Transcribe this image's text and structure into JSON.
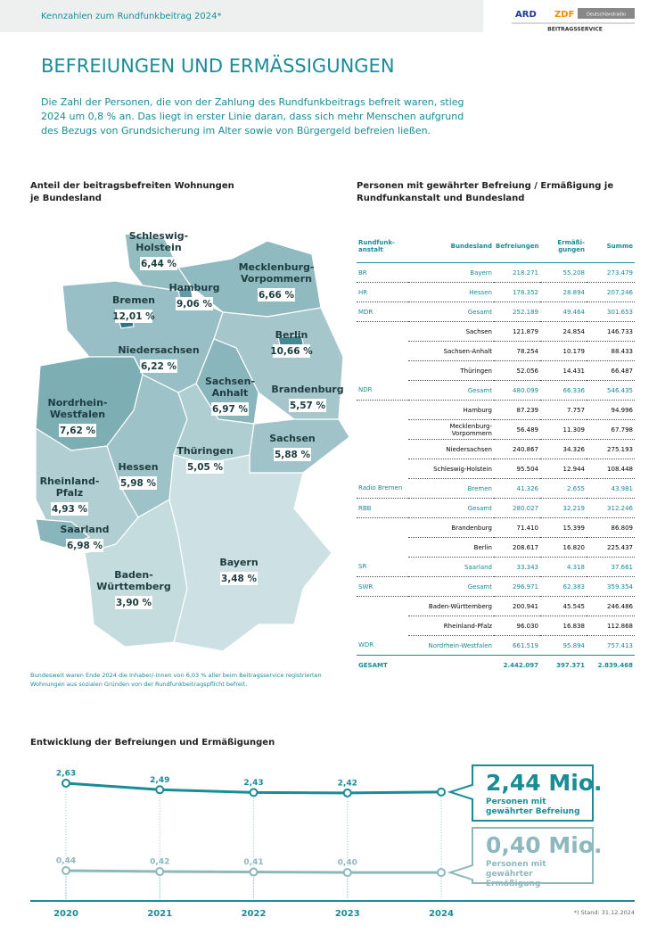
{
  "header": {
    "kicker": "Kennzahlen zum Rundfunkbeitrag 2024*",
    "logos": [
      "ARD",
      "ZDF",
      "Deutschlandradio",
      "BEITRAGSSERVICE"
    ]
  },
  "title": "BEFREIUNGEN UND ERMÄSSIGUNGEN",
  "intro": "Die Zahl der Personen, die von der Zahlung des Rundfunkbeitrags befreit waren, stieg 2024 um 0,8 % an. Das liegt in erster Linie daran, dass sich mehr Menschen aufgrund des Bezugs von Grundsicherung im Alter sowie von Bürgergeld befreien ließen.",
  "map": {
    "title": "Anteil der beitragsbefreiten Wohnungen je Bundesland",
    "regions": [
      {
        "name": [
          "Schleswig-",
          "Holstein"
        ],
        "value": 6.44,
        "label": "6,44 %"
      },
      {
        "name": [
          "Mecklenburg-",
          "Vorpommern"
        ],
        "value": 6.66,
        "label": "6,66 %"
      },
      {
        "name": [
          "Niedersachsen"
        ],
        "value": 6.22,
        "label": "6,22 %"
      },
      {
        "name": [
          "Brandenburg"
        ],
        "value": 5.57,
        "label": "5,57 %"
      },
      {
        "name": [
          "Sachsen-",
          "Anhalt"
        ],
        "value": 6.97,
        "label": "6,97 %"
      },
      {
        "name": [
          "Nordrhein-",
          "Westfalen"
        ],
        "value": 7.62,
        "label": "7,62 %"
      },
      {
        "name": [
          "Hessen"
        ],
        "value": 5.98,
        "label": "5,98 %"
      },
      {
        "name": [
          "Thüringen"
        ],
        "value": 5.05,
        "label": "5,05 %"
      },
      {
        "name": [
          "Sachsen"
        ],
        "value": 5.88,
        "label": "5,88 %"
      },
      {
        "name": [
          "Rheinland-",
          "Pfalz"
        ],
        "value": 4.93,
        "label": "4,93 %"
      },
      {
        "name": [
          "Saarland"
        ],
        "value": 6.98,
        "label": "6,98 %"
      },
      {
        "name": [
          "Baden-",
          "Württemberg"
        ],
        "value": 3.9,
        "label": "3,90 %"
      },
      {
        "name": [
          "Bayern"
        ],
        "value": 3.48,
        "label": "3,48 %"
      },
      {
        "name": [
          "Hamburg"
        ],
        "value": 9.06,
        "label": "9,06 %"
      },
      {
        "name": [
          "Bremen"
        ],
        "value": 12.01,
        "label": "12,01 %"
      },
      {
        "name": [
          "Berlin"
        ],
        "value": 10.66,
        "label": "10,66 %"
      }
    ],
    "footnote": "Bundesweit waren Ende 2024 die Inhaber/-innen von 6,03 % aller beim Beitragsservice registrierten Wohnungen aus sozialen Gründen von der Rundfunkbeitragspflicht befreit."
  },
  "table": {
    "title": "Personen mit gewährter Befreiung / Ermäßigung je Rundfunkanstalt und Bundesland",
    "columns": [
      "Rundfunk-anstalt",
      "Bundesland",
      "Befreiungen",
      "Ermäßi-gungen",
      "Summe"
    ],
    "rows": [
      [
        "BR",
        "Bayern",
        "218.271",
        "55.208",
        "273.479"
      ],
      [
        "HR",
        "Hessen",
        "178.352",
        "28.894",
        "207.246"
      ],
      [
        "MDR",
        "Gesamt",
        "252.189",
        "49.464",
        "301.653"
      ],
      [
        null,
        "Sachsen",
        "121.879",
        "24.854",
        "146.733"
      ],
      [
        null,
        "Sachsen-Anhalt",
        "78.254",
        "10.179",
        "88.433"
      ],
      [
        null,
        "Thüringen",
        "52.056",
        "14.431",
        "66.487"
      ],
      [
        "NDR",
        "Gesamt",
        "480.099",
        "66.336",
        "546.435"
      ],
      [
        null,
        "Hamburg",
        "87.239",
        "7.757",
        "94.996"
      ],
      [
        null,
        "Mecklenburg-Vorpommern",
        "56.489",
        "11.309",
        "67.798"
      ],
      [
        null,
        "Niedersachsen",
        "240.867",
        "34.326",
        "275.193"
      ],
      [
        null,
        "Schleswig-Holstein",
        "95.504",
        "12.944",
        "108.448"
      ],
      [
        "Radio Bremen",
        "Bremen",
        "41.326",
        "2.655",
        "43.981"
      ],
      [
        "RBB",
        "Gesamt",
        "280.027",
        "32.219",
        "312.246"
      ],
      [
        null,
        "Brandenburg",
        "71.410",
        "15.399",
        "86.809"
      ],
      [
        null,
        "Berlin",
        "208.617",
        "16.820",
        "225.437"
      ],
      [
        "SR",
        "Saarland",
        "33.343",
        "4.318",
        "37.661"
      ],
      [
        "SWR",
        "Gesamt",
        "296.971",
        "62.383",
        "359.354"
      ],
      [
        null,
        "Baden-Württemberg",
        "200.941",
        "45.545",
        "246.486"
      ],
      [
        null,
        "Rheinland-Pfalz",
        "96.030",
        "16.838",
        "112.868"
      ],
      [
        "WDR",
        "Nordrhein-Westfalen",
        "661.519",
        "95.894",
        "757.413"
      ]
    ],
    "total": [
      "GESAMT",
      null,
      "2.442.097",
      "397.371",
      "2.839.468"
    ]
  },
  "trend": {
    "type": "line",
    "title": "Entwicklung der Befreiungen und Ermäßigungen",
    "categories": [
      "2020",
      "2021",
      "2022",
      "2023",
      "2024"
    ],
    "series": [
      {
        "name": "Personen mit gewährter Befreiung",
        "callout": "2,44 Mio.",
        "color": "#1a8c97",
        "values": [
          2.63,
          2.49,
          2.43,
          2.42,
          2.44
        ],
        "value_labels": [
          "2,63",
          "2,49",
          "2,43",
          "2,42",
          null
        ]
      },
      {
        "name": "Personen mit gewährter Ermäßigung",
        "callout": "0,40 Mio.",
        "color": "#8db8bd",
        "values": [
          0.44,
          0.42,
          0.41,
          0.4,
          0.4
        ],
        "value_labels": [
          "0,44",
          "0,42",
          "0,41",
          "0,40",
          null
        ]
      }
    ],
    "footnote": "*) Stand: 31.12.2024"
  }
}
